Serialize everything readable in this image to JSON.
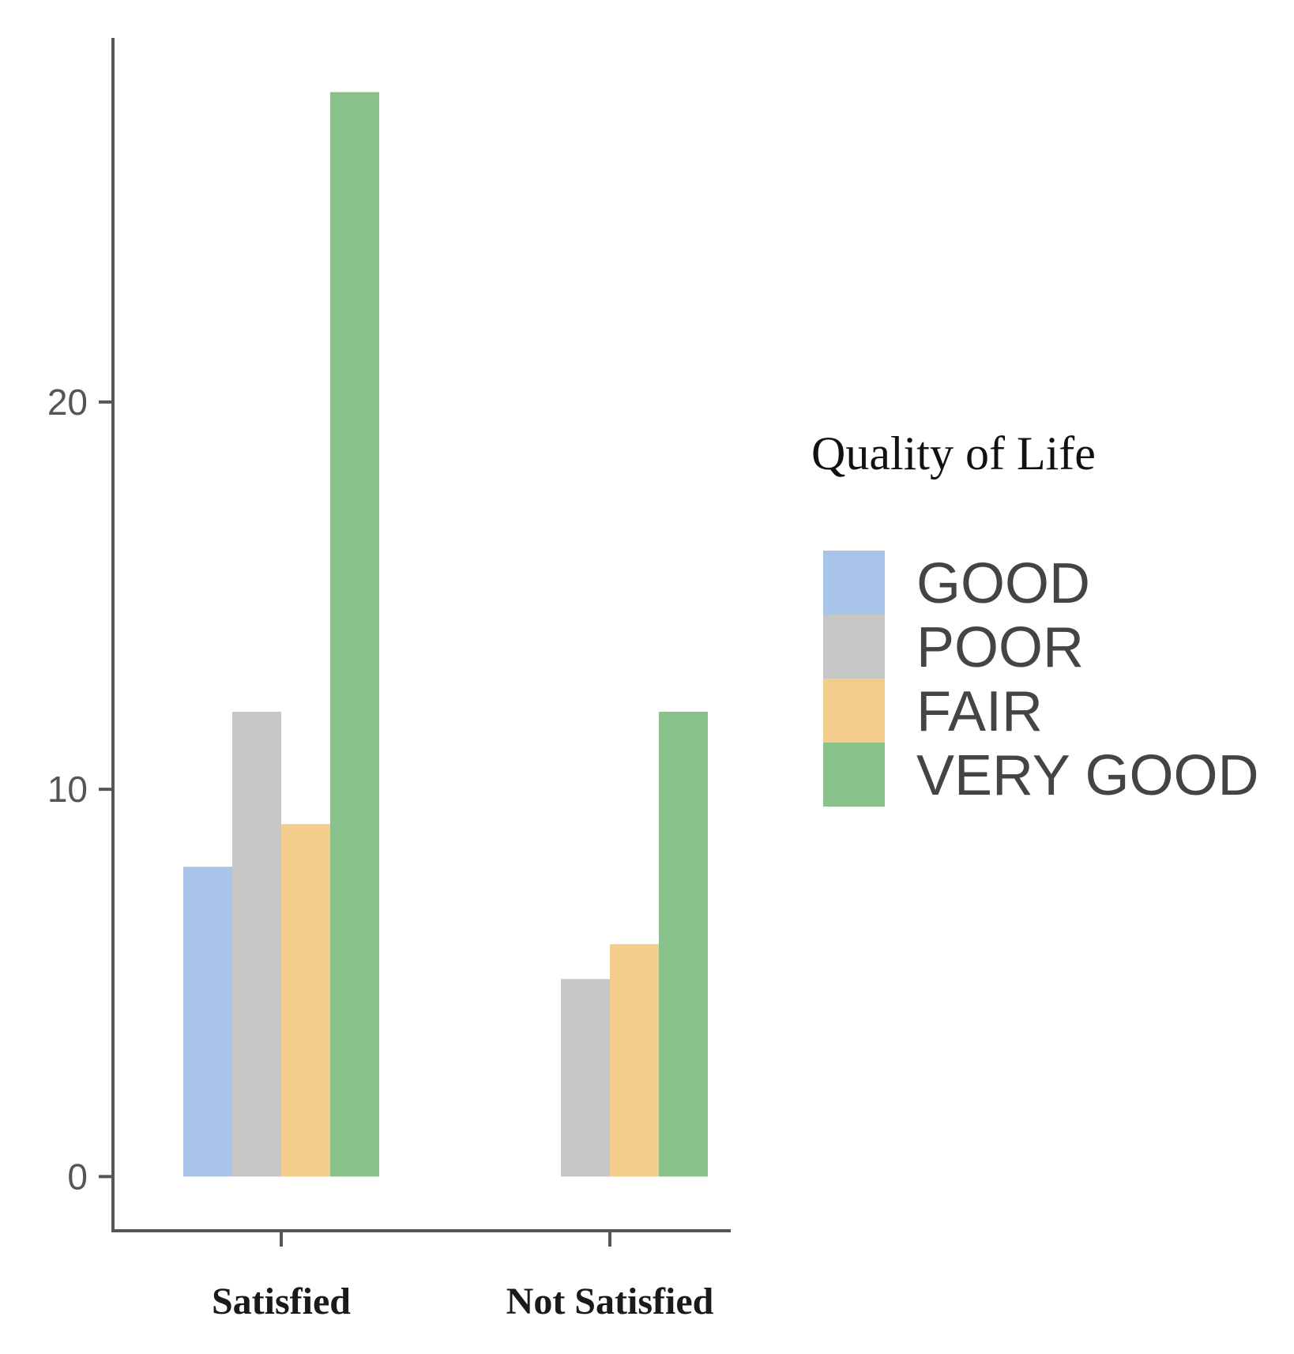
{
  "chart_data": {
    "type": "bar",
    "title": "",
    "xlabel": "",
    "ylabel": "",
    "categories": [
      "Satisfied",
      "Not Satisfied"
    ],
    "series": [
      {
        "name": "GOOD",
        "values": [
          8,
          0
        ],
        "color": "#a8c4e8"
      },
      {
        "name": "POOR",
        "values": [
          12,
          5.1
        ],
        "color": "#c6c6c6"
      },
      {
        "name": "FAIR",
        "values": [
          9.1,
          6
        ],
        "color": "#f2cd8c"
      },
      {
        "name": "VERY GOOD",
        "values": [
          28,
          12
        ],
        "color": "#88c18a"
      }
    ],
    "yticks": [
      0,
      10,
      20
    ],
    "ytick_labels": [
      "0",
      "10",
      "20"
    ],
    "ylim": [
      -1.4,
      29.4
    ],
    "grid": false,
    "legend": {
      "title": "Quality of Life",
      "position": "right"
    }
  }
}
